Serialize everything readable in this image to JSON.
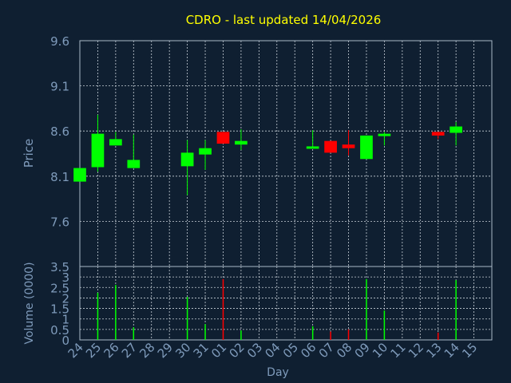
{
  "chart_data": {
    "type": "candlestick",
    "title": "CDRO - last updated 14/04/2026",
    "xlabel": "Day",
    "price_panel": {
      "ylabel": "Price",
      "ylim": [
        7.1,
        9.6
      ],
      "yticks": [
        "7.6",
        "8.1",
        "8.6",
        "9.1",
        "9.6"
      ],
      "grid": true
    },
    "volume_panel": {
      "ylabel": "Volume (0000)",
      "ylim": [
        0,
        3.5
      ],
      "yticks": [
        "0",
        "0.5",
        "1",
        "1.5",
        "2",
        "2.5",
        "3",
        "3.5"
      ],
      "grid": true
    },
    "x_ticks": [
      "24",
      "25",
      "26",
      "27",
      "28",
      "29",
      "30",
      "31",
      "01",
      "02",
      "03",
      "04",
      "05",
      "06",
      "07",
      "08",
      "09",
      "10",
      "11",
      "12",
      "13",
      "14",
      "15"
    ],
    "up_color": "#00ff00",
    "down_color": "#ff0000",
    "candles": [
      {
        "day": "24",
        "open": 8.04,
        "close": 8.19,
        "high": 8.19,
        "low": 8.04,
        "volume": 0.0
      },
      {
        "day": "25",
        "open": 8.2,
        "close": 8.57,
        "high": 8.78,
        "low": 8.15,
        "volume": 2.25
      },
      {
        "day": "26",
        "open": 8.44,
        "close": 8.51,
        "high": 8.59,
        "low": 8.44,
        "volume": 2.62
      },
      {
        "day": "27",
        "open": 8.19,
        "close": 8.28,
        "high": 8.56,
        "low": 8.19,
        "volume": 0.6
      },
      {
        "day": "30",
        "open": 8.21,
        "close": 8.36,
        "high": 8.5,
        "low": 7.89,
        "volume": 2.05
      },
      {
        "day": "31",
        "open": 8.34,
        "close": 8.41,
        "high": 8.5,
        "low": 8.17,
        "volume": 0.75
      },
      {
        "day": "01",
        "open": 8.59,
        "close": 8.46,
        "high": 8.59,
        "low": 8.46,
        "volume": 2.9
      },
      {
        "day": "02",
        "open": 8.45,
        "close": 8.49,
        "high": 8.62,
        "low": 8.39,
        "volume": 0.45
      },
      {
        "day": "06",
        "open": 8.41,
        "close": 8.43,
        "high": 8.61,
        "low": 8.41,
        "volume": 0.65
      },
      {
        "day": "07",
        "open": 8.49,
        "close": 8.36,
        "high": 8.49,
        "low": 8.36,
        "volume": 0.4
      },
      {
        "day": "08",
        "open": 8.45,
        "close": 8.41,
        "high": 8.61,
        "low": 8.33,
        "volume": 0.5
      },
      {
        "day": "09",
        "open": 8.29,
        "close": 8.55,
        "high": 8.55,
        "low": 8.29,
        "volume": 2.9
      },
      {
        "day": "10",
        "open": 8.55,
        "close": 8.57,
        "high": 8.59,
        "low": 8.44,
        "volume": 1.4
      },
      {
        "day": "13",
        "open": 8.59,
        "close": 8.55,
        "high": 8.59,
        "low": 8.51,
        "volume": 0.35
      },
      {
        "day": "14",
        "open": 8.58,
        "close": 8.65,
        "high": 8.7,
        "low": 8.44,
        "volume": 2.85
      }
    ]
  }
}
